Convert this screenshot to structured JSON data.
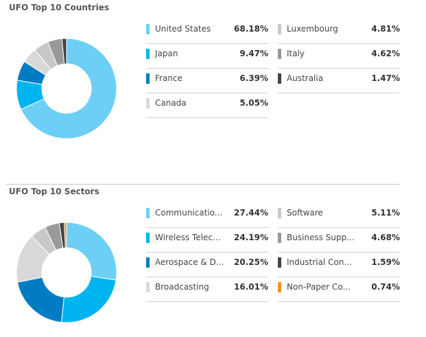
{
  "chart_data": [
    {
      "type": "pie",
      "title": "UFO Top 10 Countries",
      "unit": "%",
      "slices": [
        {
          "label": "United States",
          "value": 68.18,
          "display": "68.18%",
          "color": "#6dcff6"
        },
        {
          "label": "Japan",
          "value": 9.47,
          "display": "9.47%",
          "color": "#00b5ef"
        },
        {
          "label": "France",
          "value": 6.39,
          "display": "6.39%",
          "color": "#007cc3"
        },
        {
          "label": "Canada",
          "value": 5.05,
          "display": "5.05%",
          "color": "#d9d9d9"
        },
        {
          "label": "Luxembourg",
          "value": 4.81,
          "display": "4.81%",
          "color": "#c8c8c8"
        },
        {
          "label": "Italy",
          "value": 4.62,
          "display": "4.62%",
          "color": "#999999"
        },
        {
          "label": "Australia",
          "value": 1.47,
          "display": "1.47%",
          "color": "#444444"
        }
      ]
    },
    {
      "type": "pie",
      "title": "UFO Top 10 Sectors",
      "unit": "%",
      "slices": [
        {
          "label": "Communicatio...",
          "value": 27.44,
          "display": "27.44%",
          "color": "#6dcff6"
        },
        {
          "label": "Wireless Telec...",
          "value": 24.19,
          "display": "24.19%",
          "color": "#00b5ef"
        },
        {
          "label": "Aerospace & D...",
          "value": 20.25,
          "display": "20.25%",
          "color": "#007cc3"
        },
        {
          "label": "Broadcasting",
          "value": 16.01,
          "display": "16.01%",
          "color": "#d9d9d9"
        },
        {
          "label": "Software",
          "value": 5.11,
          "display": "5.11%",
          "color": "#c8c8c8"
        },
        {
          "label": "Business Supp...",
          "value": 4.68,
          "display": "4.68%",
          "color": "#999999"
        },
        {
          "label": "Industrial Con...",
          "value": 1.59,
          "display": "1.59%",
          "color": "#444444"
        },
        {
          "label": "Non-Paper Co...",
          "value": 0.74,
          "display": "0.74%",
          "color": "#f7941d"
        }
      ]
    }
  ]
}
